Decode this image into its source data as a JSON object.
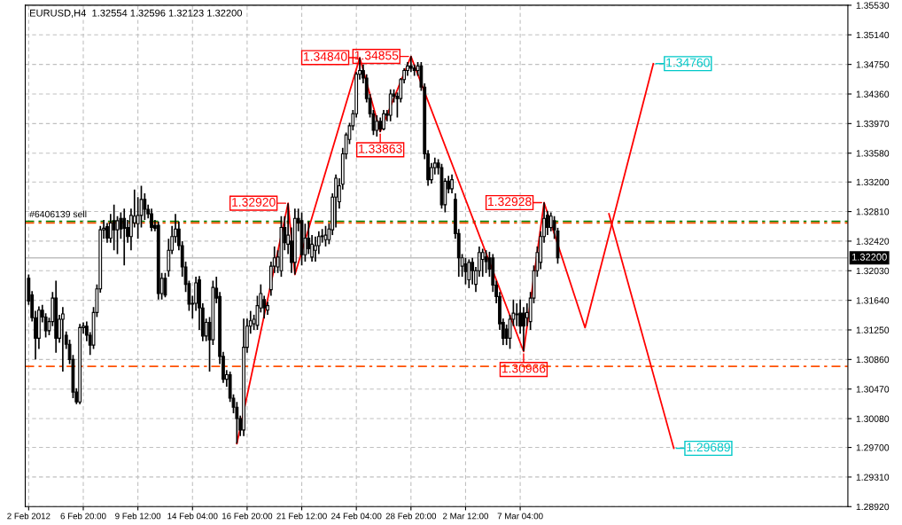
{
  "chart_data": {
    "type": "candlestick",
    "title": "EURUSD,H4  1.32554 1.32596 1.32123 1.32200",
    "categories": [
      "2 Feb 2012",
      null,
      null,
      null,
      null,
      null,
      null,
      null,
      null,
      null,
      null,
      null,
      null,
      null,
      null,
      null,
      "6 Feb 20:00",
      null,
      null,
      null,
      null,
      null,
      null,
      null,
      null,
      null,
      null,
      null,
      null,
      null,
      null,
      null,
      "9 Feb 12:00",
      null,
      null,
      null,
      null,
      null,
      null,
      null,
      null,
      null,
      null,
      null,
      null,
      null,
      null,
      null,
      "14 Feb 04:00",
      null,
      null,
      null,
      null,
      null,
      null,
      null,
      null,
      null,
      null,
      null,
      null,
      null,
      null,
      null,
      "16 Feb 20:00",
      null,
      null,
      null,
      null,
      null,
      null,
      null,
      null,
      null,
      null,
      null,
      null,
      null,
      null,
      null,
      "21 Feb 12:00",
      null,
      null,
      null,
      null,
      null,
      null,
      null,
      null,
      null,
      null,
      null,
      null,
      null,
      null,
      null,
      "24 Feb 04:00",
      null,
      null,
      null,
      null,
      null,
      null,
      null,
      null,
      null,
      null,
      null,
      null,
      null,
      null,
      null,
      "28 Feb 20:00",
      null,
      null,
      null,
      null,
      null,
      null,
      null,
      null,
      null,
      null,
      null,
      null,
      null,
      null,
      null,
      "2 Mar 12:00",
      null,
      null,
      null,
      null,
      null,
      null,
      null,
      null,
      null,
      null,
      null,
      null,
      null,
      null,
      null,
      "7 Mar 04:00",
      null,
      null,
      null,
      null,
      null,
      null,
      null,
      null,
      null,
      null,
      null,
      null,
      null,
      null,
      null,
      null,
      null,
      null,
      null,
      null,
      null,
      null,
      null,
      null,
      null,
      null,
      null,
      null,
      null,
      null,
      null,
      null,
      null,
      null,
      null,
      null,
      null,
      null,
      null,
      null,
      null,
      null,
      null,
      null,
      null,
      null,
      null,
      null,
      null,
      null,
      null,
      null,
      null,
      null,
      null,
      null,
      null,
      null,
      null,
      null,
      null,
      null,
      null,
      null,
      null,
      null,
      null,
      null,
      null,
      null,
      null,
      null,
      null,
      null,
      null,
      null,
      null,
      null,
      null,
      null,
      null,
      null,
      null,
      null,
      null,
      null,
      null,
      null,
      null,
      null,
      null,
      null,
      null,
      null,
      null
    ],
    "ohlc": [
      [
        1.3193,
        1.3198,
        1.3158,
        1.3163
      ],
      [
        1.3171,
        1.3176,
        1.3136,
        1.3141
      ],
      [
        1.3141,
        1.315,
        1.3086,
        1.3114
      ],
      [
        1.3114,
        1.3156,
        1.31,
        1.3151
      ],
      [
        1.3151,
        1.3158,
        1.3135,
        1.3142
      ],
      [
        1.3142,
        1.3147,
        1.3115,
        1.3124
      ],
      [
        1.3124,
        1.3141,
        1.3118,
        1.3136
      ],
      [
        1.3136,
        1.3175,
        1.313,
        1.3167
      ],
      [
        1.3167,
        1.319,
        1.3095,
        1.3114
      ],
      [
        1.3114,
        1.3145,
        1.3108,
        1.3139
      ],
      [
        1.3139,
        1.3155,
        1.307,
        1.3146
      ],
      [
        1.3118,
        1.3123,
        1.31,
        1.3106
      ],
      [
        1.3106,
        1.3112,
        1.308,
        1.3086
      ],
      [
        1.3086,
        1.3092,
        1.3035,
        1.3043
      ],
      [
        1.3043,
        1.3048,
        1.3027,
        1.303
      ],
      [
        1.303,
        1.3133,
        1.3027,
        1.3128
      ],
      [
        1.3128,
        1.3135,
        1.312,
        1.313
      ],
      [
        1.313,
        1.3136,
        1.311,
        1.3118
      ],
      [
        1.3118,
        1.3122,
        1.3092,
        1.3105
      ],
      [
        1.3105,
        1.3155,
        1.31,
        1.3148
      ],
      [
        1.3148,
        1.3185,
        1.3142,
        1.3179
      ],
      [
        1.3179,
        1.3262,
        1.3174,
        1.3257
      ],
      [
        1.3257,
        1.327,
        1.3245,
        1.3259
      ],
      [
        1.3261,
        1.3266,
        1.324,
        1.3246
      ],
      [
        1.3246,
        1.3278,
        1.324,
        1.3266
      ],
      [
        1.3269,
        1.329,
        1.323,
        1.3257
      ],
      [
        1.3257,
        1.3275,
        1.3225,
        1.3269
      ],
      [
        1.3272,
        1.328,
        1.3245,
        1.3258
      ],
      [
        1.3272,
        1.3285,
        1.321,
        1.3259
      ],
      [
        1.326,
        1.327,
        1.324,
        1.3248
      ],
      [
        1.3248,
        1.3285,
        1.323,
        1.3276
      ],
      [
        1.3266,
        1.331,
        1.326,
        1.3275
      ],
      [
        1.3265,
        1.33,
        1.3245,
        1.3276
      ],
      [
        1.3276,
        1.3315,
        1.326,
        1.3297
      ],
      [
        1.3297,
        1.3305,
        1.327,
        1.3284
      ],
      [
        1.3284,
        1.329,
        1.3272,
        1.3278
      ],
      [
        1.3278,
        1.3285,
        1.3255,
        1.326
      ],
      [
        1.3263,
        1.327,
        1.3255,
        1.3259
      ],
      [
        1.3263,
        1.3268,
        1.3165,
        1.3173
      ],
      [
        1.3173,
        1.32,
        1.3165,
        1.3193
      ],
      [
        1.3193,
        1.32,
        1.3168,
        1.3171
      ],
      [
        1.3203,
        1.3245,
        1.3195,
        1.323
      ],
      [
        1.323,
        1.3262,
        1.3225,
        1.3248
      ],
      [
        1.3248,
        1.3278,
        1.324,
        1.3258
      ],
      [
        1.3258,
        1.3268,
        1.323,
        1.3236
      ],
      [
        1.3236,
        1.3242,
        1.3195,
        1.3208
      ],
      [
        1.3208,
        1.3215,
        1.3175,
        1.3185
      ],
      [
        1.3186,
        1.319,
        1.315,
        1.3159
      ],
      [
        1.316,
        1.317,
        1.314,
        1.3159
      ],
      [
        1.316,
        1.3195,
        1.315,
        1.3187
      ],
      [
        1.3191,
        1.3196,
        1.3125,
        1.3154
      ],
      [
        1.3154,
        1.316,
        1.311,
        1.3117
      ],
      [
        1.3117,
        1.314,
        1.311,
        1.3135
      ],
      [
        1.3135,
        1.3142,
        1.307,
        1.3112
      ],
      [
        1.3112,
        1.319,
        1.3105,
        1.3181
      ],
      [
        1.318,
        1.3195,
        1.316,
        1.3167
      ],
      [
        1.3169,
        1.3175,
        1.308,
        1.309
      ],
      [
        1.309,
        1.3096,
        1.3055,
        1.306
      ],
      [
        1.306,
        1.3072,
        1.305,
        1.3066
      ],
      [
        1.3066,
        1.307,
        1.303,
        1.3035
      ],
      [
        1.3035,
        1.304,
        1.3015,
        1.3023
      ],
      [
        1.3023,
        1.303,
        1.2975,
        1.3008
      ],
      [
        1.3008,
        1.3012,
        1.2985,
        1.2993
      ],
      [
        1.2993,
        1.314,
        1.2985,
        1.3102
      ],
      [
        1.3102,
        1.314,
        1.3095,
        1.313
      ],
      [
        1.313,
        1.315,
        1.312,
        1.3137
      ],
      [
        1.3133,
        1.3145,
        1.3125,
        1.3139
      ],
      [
        1.3131,
        1.317,
        1.3125,
        1.3157
      ],
      [
        1.3154,
        1.3185,
        1.3148,
        1.3173
      ],
      [
        1.3165,
        1.317,
        1.314,
        1.3154
      ],
      [
        1.3151,
        1.3162,
        1.3145,
        1.3157
      ],
      [
        1.3178,
        1.3215,
        1.317,
        1.3209
      ],
      [
        1.3209,
        1.3235,
        1.32,
        1.322
      ],
      [
        1.3208,
        1.323,
        1.32,
        1.3221
      ],
      [
        1.3203,
        1.3275,
        1.3195,
        1.326
      ],
      [
        1.326,
        1.3275,
        1.323,
        1.324
      ],
      [
        1.3238,
        1.3292,
        1.3225,
        1.325
      ],
      [
        1.3242,
        1.326,
        1.32,
        1.3214
      ],
      [
        1.3214,
        1.3285,
        1.3198,
        1.3272
      ],
      [
        1.3272,
        1.3285,
        1.3255,
        1.3266
      ],
      [
        1.3269,
        1.328,
        1.321,
        1.3224
      ],
      [
        1.3224,
        1.3265,
        1.3215,
        1.3246
      ],
      [
        1.3246,
        1.3268,
        1.3225,
        1.3232
      ],
      [
        1.3221,
        1.325,
        1.3215,
        1.3238
      ],
      [
        1.323,
        1.3248,
        1.3215,
        1.3236
      ],
      [
        1.3236,
        1.3255,
        1.3225,
        1.3248
      ],
      [
        1.3248,
        1.3258,
        1.324,
        1.3249
      ],
      [
        1.3244,
        1.3262,
        1.3235,
        1.325
      ],
      [
        1.3244,
        1.3265,
        1.3238,
        1.3258
      ],
      [
        1.3257,
        1.3305,
        1.325,
        1.33
      ],
      [
        1.33,
        1.333,
        1.326,
        1.3325
      ],
      [
        1.3294,
        1.3325,
        1.3285,
        1.3315
      ],
      [
        1.3317,
        1.3365,
        1.331,
        1.3357
      ],
      [
        1.3357,
        1.3385,
        1.335,
        1.3382
      ],
      [
        1.3376,
        1.3398,
        1.337,
        1.3394
      ],
      [
        1.3394,
        1.3415,
        1.3388,
        1.341
      ],
      [
        1.341,
        1.3465,
        1.3405,
        1.3462
      ],
      [
        1.3462,
        1.3484,
        1.3455,
        1.3467
      ],
      [
        1.3467,
        1.3475,
        1.345,
        1.3457
      ],
      [
        1.3457,
        1.3462,
        1.3425,
        1.343
      ],
      [
        1.343,
        1.3436,
        1.3405,
        1.341
      ],
      [
        1.341,
        1.3415,
        1.3382,
        1.3388
      ],
      [
        1.3388,
        1.3408,
        1.338,
        1.34
      ],
      [
        1.34,
        1.3405,
        1.3386,
        1.339
      ],
      [
        1.339,
        1.3415,
        1.3388,
        1.341
      ],
      [
        1.341,
        1.3415,
        1.34,
        1.3408
      ],
      [
        1.3408,
        1.3442,
        1.34,
        1.3436
      ],
      [
        1.3436,
        1.3442,
        1.3425,
        1.3433
      ],
      [
        1.3433,
        1.3438,
        1.3405,
        1.343
      ],
      [
        1.343,
        1.3457,
        1.3425,
        1.3455
      ],
      [
        1.3455,
        1.347,
        1.345,
        1.3467
      ],
      [
        1.3467,
        1.3478,
        1.346,
        1.3473
      ],
      [
        1.3473,
        1.3486,
        1.3465,
        1.347
      ],
      [
        1.347,
        1.3475,
        1.346,
        1.3467
      ],
      [
        1.3467,
        1.3478,
        1.346,
        1.3473
      ],
      [
        1.3473,
        1.3478,
        1.344,
        1.3445
      ],
      [
        1.3445,
        1.345,
        1.335,
        1.3357
      ],
      [
        1.3357,
        1.3362,
        1.3315,
        1.3323
      ],
      [
        1.3323,
        1.3345,
        1.3318,
        1.3339
      ],
      [
        1.3339,
        1.3352,
        1.333,
        1.3345
      ],
      [
        1.3345,
        1.335,
        1.333,
        1.3339
      ],
      [
        1.3339,
        1.3344,
        1.3285,
        1.329
      ],
      [
        1.329,
        1.3325,
        1.328,
        1.3321
      ],
      [
        1.3321,
        1.3328,
        1.3305,
        1.3311
      ],
      [
        1.3311,
        1.333,
        1.3305,
        1.3323
      ],
      [
        1.3297,
        1.3305,
        1.3245,
        1.3252
      ],
      [
        1.3252,
        1.3258,
        1.3195,
        1.322
      ],
      [
        1.3209,
        1.3225,
        1.3195,
        1.322
      ],
      [
        1.3212,
        1.322,
        1.3185,
        1.3202
      ],
      [
        1.3191,
        1.3218,
        1.318,
        1.3214
      ],
      [
        1.3214,
        1.322,
        1.3185,
        1.3203
      ],
      [
        1.3185,
        1.3208,
        1.3175,
        1.3203
      ],
      [
        1.3203,
        1.3235,
        1.3195,
        1.3227
      ],
      [
        1.3218,
        1.3232,
        1.3195,
        1.3227
      ],
      [
        1.3221,
        1.323,
        1.32,
        1.3215
      ],
      [
        1.322,
        1.3228,
        1.3195,
        1.3205
      ],
      [
        1.322,
        1.3225,
        1.3175,
        1.3184
      ],
      [
        1.3184,
        1.319,
        1.316,
        1.3169
      ],
      [
        1.3169,
        1.3175,
        1.3125,
        1.3133
      ],
      [
        1.3135,
        1.314,
        1.3105,
        1.3114
      ],
      [
        1.3126,
        1.3132,
        1.3105,
        1.3114
      ],
      [
        1.3114,
        1.3145,
        1.31,
        1.3139
      ],
      [
        1.3139,
        1.3165,
        1.313,
        1.3147
      ],
      [
        1.3145,
        1.316,
        1.313,
        1.3146
      ],
      [
        1.3147,
        1.3165,
        1.312,
        1.313
      ],
      [
        1.3147,
        1.3155,
        1.3097,
        1.313
      ],
      [
        1.3141,
        1.316,
        1.313,
        1.3148
      ],
      [
        1.3136,
        1.3175,
        1.3125,
        1.3167
      ],
      [
        1.3167,
        1.321,
        1.316,
        1.3203
      ],
      [
        1.3203,
        1.3235,
        1.3195,
        1.3227
      ],
      [
        1.3214,
        1.3255,
        1.3205,
        1.3248
      ],
      [
        1.3248,
        1.3293,
        1.324,
        1.3272
      ],
      [
        1.3276,
        1.3282,
        1.325,
        1.326
      ],
      [
        1.326,
        1.328,
        1.3255,
        1.3275
      ],
      [
        1.3269,
        1.3275,
        1.3245,
        1.3257
      ],
      [
        1.32554,
        1.32596,
        1.32123,
        1.322
      ],
      null,
      null,
      null,
      null,
      null,
      null,
      null,
      null,
      null,
      null,
      null,
      null,
      null,
      null,
      null,
      null,
      null,
      null,
      null,
      null,
      null,
      null,
      null,
      null,
      null,
      null,
      null,
      null,
      null,
      null,
      null,
      null,
      null,
      null,
      null,
      null,
      null,
      null,
      null,
      null,
      null,
      null,
      null,
      null,
      null,
      null,
      null,
      null,
      null,
      null,
      null,
      null,
      null,
      null,
      null,
      null,
      null,
      null,
      null,
      null,
      null,
      null,
      null,
      null,
      null,
      null,
      null,
      null,
      null,
      null,
      null,
      null,
      null,
      null,
      null,
      null,
      null,
      null,
      null,
      null,
      null,
      null,
      null,
      null
    ],
    "series": [
      {
        "type": "line",
        "color": "#ff0000",
        "values": [
          null,
          null,
          null,
          null,
          null,
          null,
          null,
          null,
          null,
          null,
          null,
          null,
          null,
          null,
          null,
          null,
          null,
          null,
          null,
          null,
          null,
          null,
          null,
          null,
          null,
          null,
          null,
          null,
          null,
          null,
          null,
          null,
          null,
          null,
          null,
          null,
          null,
          null,
          null,
          null,
          null,
          null,
          null,
          null,
          null,
          null,
          null,
          null,
          null,
          null,
          null,
          null,
          null,
          null,
          null,
          null,
          null,
          null,
          null,
          null,
          null,
          1.2975,
          null,
          null,
          null,
          null,
          null,
          null,
          null,
          null,
          null,
          null,
          null,
          null,
          null,
          null,
          1.3292,
          null,
          1.3198,
          null,
          null,
          null,
          null,
          null,
          null,
          null,
          null,
          null,
          null,
          null,
          null,
          null,
          null,
          null,
          null,
          null,
          null,
          1.3484,
          null,
          null,
          null,
          null,
          null,
          1.33863,
          null,
          null,
          null,
          null,
          null,
          null,
          null,
          null,
          1.34855,
          null,
          null,
          null,
          null,
          null,
          null,
          null,
          null,
          null,
          null,
          null,
          null,
          null,
          null,
          null,
          null,
          null,
          null,
          null,
          null,
          null,
          null,
          null,
          null,
          null,
          null,
          null,
          null,
          null,
          null,
          null,
          null,
          1.30966,
          null,
          null,
          null,
          null,
          null,
          1.32928,
          null,
          null,
          null,
          null,
          null,
          null,
          null,
          null,
          null,
          null,
          null,
          1.3128,
          null,
          null,
          null,
          null,
          null,
          null,
          null,
          null,
          null,
          null,
          null,
          null,
          null,
          null,
          null,
          null,
          null,
          null,
          null,
          1.3476,
          null,
          null,
          null,
          null,
          null,
          null,
          null,
          null,
          null,
          null,
          null,
          null,
          null,
          null,
          null,
          null,
          null,
          null,
          null,
          null,
          null,
          null,
          null,
          null,
          null,
          null,
          null,
          null,
          null,
          null,
          null,
          null,
          null,
          null,
          null,
          null,
          null,
          null,
          null,
          null,
          null,
          null,
          null,
          null,
          null,
          null,
          null,
          null,
          null,
          null,
          null,
          null,
          null,
          null,
          null,
          null
        ],
        "value_labels": [
          null,
          null,
          null,
          null,
          null,
          null,
          null,
          null,
          null,
          null,
          null,
          null,
          null,
          null,
          null,
          null,
          null,
          null,
          null,
          null,
          null,
          null,
          null,
          null,
          null,
          null,
          null,
          null,
          null,
          null,
          null,
          null,
          null,
          null,
          null,
          null,
          null,
          null,
          null,
          null,
          null,
          null,
          null,
          null,
          null,
          null,
          null,
          null,
          null,
          null,
          null,
          null,
          null,
          null,
          null,
          null,
          null,
          null,
          null,
          null,
          null,
          null,
          null,
          null,
          null,
          null,
          null,
          null,
          null,
          null,
          null,
          null,
          null,
          null,
          null,
          null,
          "1.32920",
          null,
          null,
          null,
          null,
          null,
          null,
          null,
          null,
          null,
          null,
          null,
          null,
          null,
          null,
          null,
          null,
          null,
          null,
          null,
          null,
          "1.34840",
          null,
          null,
          null,
          null,
          null,
          "1.33863",
          null,
          null,
          null,
          null,
          null,
          null,
          null,
          null,
          "1.34855",
          null,
          null,
          null,
          null,
          null,
          null,
          null,
          null,
          null,
          null,
          null,
          null,
          null,
          null,
          null,
          null,
          null,
          null,
          null,
          null,
          null,
          null,
          null,
          null,
          null,
          null,
          null,
          null,
          null,
          null,
          null,
          null,
          "1.30966",
          null,
          null,
          null,
          null,
          null,
          "1.32928",
          null,
          null,
          null,
          null,
          null,
          null,
          null,
          null,
          null,
          null,
          null,
          null,
          null,
          null,
          null,
          null,
          null,
          null,
          null,
          null,
          null,
          null,
          null,
          null,
          null,
          null,
          null,
          null,
          null,
          null,
          null,
          "1.34760",
          null,
          null,
          null,
          null,
          null,
          null,
          null,
          null,
          null,
          null,
          null,
          null,
          null,
          null,
          null,
          null,
          null,
          null,
          null,
          null,
          null,
          null,
          null,
          null,
          null,
          null,
          null,
          null,
          null,
          null,
          null,
          null,
          null,
          null,
          null,
          null,
          null,
          null,
          null,
          null,
          null,
          null,
          null,
          null,
          null,
          null,
          null,
          null,
          null,
          null,
          null,
          null,
          null,
          null,
          null,
          null
        ]
      },
      {
        "type": "line",
        "color": "#ff0000",
        "values": [
          null,
          null,
          null,
          null,
          null,
          null,
          null,
          null,
          null,
          null,
          null,
          null,
          null,
          null,
          null,
          null,
          null,
          null,
          null,
          null,
          null,
          null,
          null,
          null,
          null,
          null,
          null,
          null,
          null,
          null,
          null,
          null,
          null,
          null,
          null,
          null,
          null,
          null,
          null,
          null,
          null,
          null,
          null,
          null,
          null,
          null,
          null,
          null,
          null,
          null,
          null,
          null,
          null,
          null,
          null,
          null,
          null,
          null,
          null,
          null,
          null,
          null,
          null,
          null,
          null,
          null,
          null,
          null,
          null,
          null,
          null,
          null,
          null,
          null,
          null,
          null,
          null,
          null,
          null,
          null,
          null,
          null,
          null,
          null,
          null,
          null,
          null,
          null,
          null,
          null,
          null,
          null,
          null,
          null,
          null,
          null,
          null,
          null,
          null,
          null,
          null,
          null,
          null,
          null,
          null,
          null,
          null,
          null,
          null,
          null,
          null,
          null,
          null,
          null,
          null,
          null,
          null,
          null,
          null,
          null,
          null,
          null,
          null,
          null,
          null,
          null,
          null,
          null,
          null,
          null,
          null,
          null,
          null,
          null,
          null,
          null,
          null,
          null,
          null,
          null,
          null,
          null,
          null,
          null,
          null,
          null,
          null,
          null,
          null,
          null,
          null,
          null,
          null,
          null,
          null,
          null,
          null,
          null,
          null,
          null,
          null,
          null,
          null,
          null,
          null,
          null,
          null,
          null,
          null,
          null,
          1.3278,
          null,
          null,
          null,
          null,
          null,
          null,
          null,
          null,
          null,
          null,
          null,
          null,
          null,
          null,
          null,
          null,
          null,
          null,
          1.29689,
          null,
          null,
          null,
          null,
          null,
          null,
          null,
          null,
          null,
          null,
          null,
          null,
          null,
          null,
          null,
          null,
          null,
          null,
          null,
          null,
          null,
          null,
          null,
          null,
          null,
          null,
          null,
          null,
          null,
          null,
          null,
          null,
          null,
          null,
          null,
          null,
          null,
          null,
          null,
          null,
          null,
          null,
          null,
          null,
          null,
          null,
          null,
          null,
          null,
          null
        ],
        "value_labels": [
          null,
          null,
          null,
          null,
          null,
          null,
          null,
          null,
          null,
          null,
          null,
          null,
          null,
          null,
          null,
          null,
          null,
          null,
          null,
          null,
          null,
          null,
          null,
          null,
          null,
          null,
          null,
          null,
          null,
          null,
          null,
          null,
          null,
          null,
          null,
          null,
          null,
          null,
          null,
          null,
          null,
          null,
          null,
          null,
          null,
          null,
          null,
          null,
          null,
          null,
          null,
          null,
          null,
          null,
          null,
          null,
          null,
          null,
          null,
          null,
          null,
          null,
          null,
          null,
          null,
          null,
          null,
          null,
          null,
          null,
          null,
          null,
          null,
          null,
          null,
          null,
          null,
          null,
          null,
          null,
          null,
          null,
          null,
          null,
          null,
          null,
          null,
          null,
          null,
          null,
          null,
          null,
          null,
          null,
          null,
          null,
          null,
          null,
          null,
          null,
          null,
          null,
          null,
          null,
          null,
          null,
          null,
          null,
          null,
          null,
          null,
          null,
          null,
          null,
          null,
          null,
          null,
          null,
          null,
          null,
          null,
          null,
          null,
          null,
          null,
          null,
          null,
          null,
          null,
          null,
          null,
          null,
          null,
          null,
          null,
          null,
          null,
          null,
          null,
          null,
          null,
          null,
          null,
          null,
          null,
          null,
          null,
          null,
          null,
          null,
          null,
          null,
          null,
          null,
          null,
          null,
          null,
          null,
          null,
          null,
          null,
          null,
          null,
          null,
          null,
          null,
          null,
          null,
          null,
          null,
          null,
          null,
          null,
          null,
          null,
          null,
          null,
          null,
          null,
          null,
          null,
          null,
          null,
          null,
          null,
          null,
          null,
          null,
          null,
          "1.29689",
          null,
          null,
          null,
          null,
          null,
          null,
          null,
          null,
          null,
          null,
          null,
          null,
          null,
          null,
          null,
          null,
          null,
          null,
          null,
          null,
          null,
          null,
          null,
          null,
          null,
          null,
          null,
          null,
          null,
          null,
          null,
          null,
          null,
          null,
          null,
          null,
          null,
          null,
          null,
          null,
          null,
          null,
          null,
          null,
          null,
          null,
          null,
          null,
          null,
          null
        ]
      }
    ],
    "ref_lines": [
      {
        "axis": "y",
        "value": 1.3268,
        "color": "#008000",
        "line_style": "dashed"
      },
      {
        "axis": "y",
        "value": 1.3266,
        "color": "#ff5000",
        "line_style": "dashed",
        "label": "#6406139 sell"
      },
      {
        "axis": "y",
        "value": 1.3077,
        "color": "#ff5000",
        "line_style": "dashed"
      },
      {
        "axis": "y",
        "value": 1.322,
        "color": "#c0c0c0",
        "line_style": "solid",
        "label": "1.32200"
      }
    ],
    "ylim": [
      1.2892,
      1.3553
    ],
    "yticks": [
      {
        "value": 1.2892,
        "label": "1.28920"
      },
      {
        "value": 1.2931,
        "label": "1.29310"
      },
      {
        "value": 1.297,
        "label": "1.29700"
      },
      {
        "value": 1.3008,
        "label": "1.30080"
      },
      {
        "value": 1.3047,
        "label": "1.30470"
      },
      {
        "value": 1.3086,
        "label": "1.30860"
      },
      {
        "value": 1.3125,
        "label": "1.31250"
      },
      {
        "value": 1.3164,
        "label": "1.31640"
      },
      {
        "value": 1.3203,
        "label": "1.32030"
      },
      {
        "value": 1.3242,
        "label": "1.32420"
      },
      {
        "value": 1.3281,
        "label": "1.32810"
      },
      {
        "value": 1.332,
        "label": "1.33200"
      },
      {
        "value": 1.3358,
        "label": "1.33580"
      },
      {
        "value": 1.3397,
        "label": "1.33970"
      },
      {
        "value": 1.3436,
        "label": "1.34360"
      },
      {
        "value": 1.3475,
        "label": "1.34750"
      },
      {
        "value": 1.3514,
        "label": "1.35140"
      },
      {
        "value": 1.3553,
        "label": "1.35530"
      }
    ],
    "grid": true
  }
}
